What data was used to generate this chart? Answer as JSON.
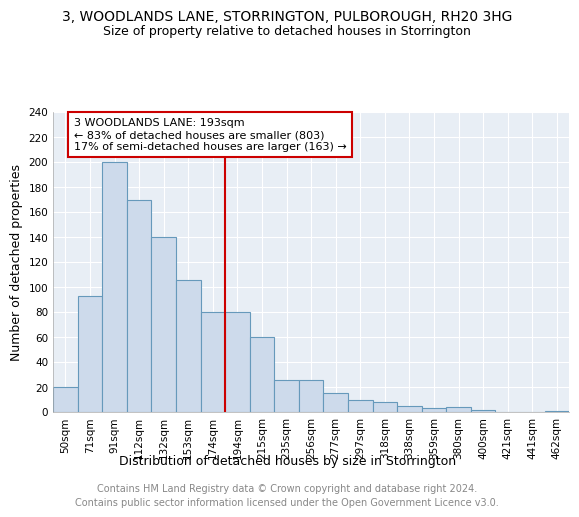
{
  "title": "3, WOODLANDS LANE, STORRINGTON, PULBOROUGH, RH20 3HG",
  "subtitle": "Size of property relative to detached houses in Storrington",
  "xlabel": "Distribution of detached houses by size in Storrington",
  "ylabel": "Number of detached properties",
  "categories": [
    "50sqm",
    "71sqm",
    "91sqm",
    "112sqm",
    "132sqm",
    "153sqm",
    "174sqm",
    "194sqm",
    "215sqm",
    "235sqm",
    "256sqm",
    "277sqm",
    "297sqm",
    "318sqm",
    "338sqm",
    "359sqm",
    "380sqm",
    "400sqm",
    "421sqm",
    "441sqm",
    "462sqm"
  ],
  "values": [
    20,
    93,
    200,
    170,
    140,
    106,
    80,
    80,
    60,
    26,
    26,
    15,
    10,
    8,
    5,
    3,
    4,
    2,
    0,
    0,
    1
  ],
  "bar_color": "#cddaeb",
  "bar_edge_color": "#6699bb",
  "vline_x_index": 7,
  "vline_color": "#cc0000",
  "annotation_text": "3 WOODLANDS LANE: 193sqm\n← 83% of detached houses are smaller (803)\n17% of semi-detached houses are larger (163) →",
  "annotation_box_color": "#ffffff",
  "annotation_box_edge_color": "#cc0000",
  "ylim": [
    0,
    240
  ],
  "yticks": [
    0,
    20,
    40,
    60,
    80,
    100,
    120,
    140,
    160,
    180,
    200,
    220,
    240
  ],
  "footer_line1": "Contains HM Land Registry data © Crown copyright and database right 2024.",
  "footer_line2": "Contains public sector information licensed under the Open Government Licence v3.0.",
  "bg_color": "#ffffff",
  "plot_bg_color": "#e8eef5",
  "grid_color": "#ffffff",
  "title_fontsize": 10,
  "subtitle_fontsize": 9,
  "axis_label_fontsize": 9,
  "tick_fontsize": 7.5,
  "footer_fontsize": 7,
  "annotation_fontsize": 8
}
